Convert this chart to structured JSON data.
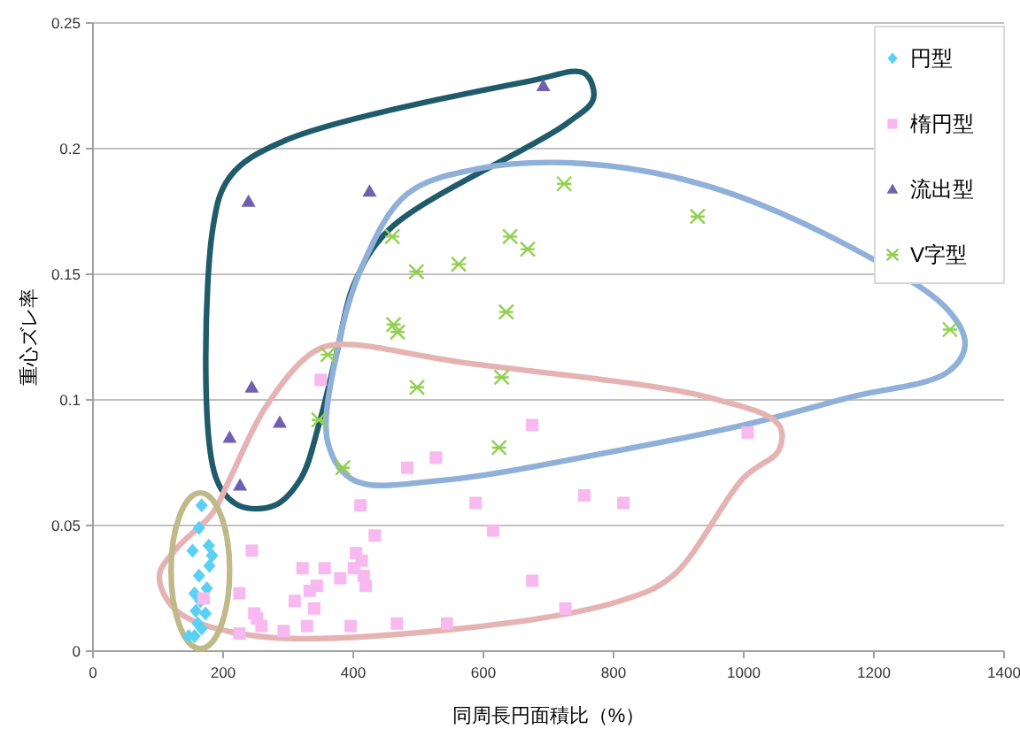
{
  "chart_data": {
    "type": "scatter",
    "xlabel": "同周長円面積比（%）",
    "ylabel": "重心ズレ率",
    "xlim": [
      0,
      1400
    ],
    "ylim": [
      0,
      0.25
    ],
    "xticks": [
      0,
      200,
      400,
      600,
      800,
      1000,
      1200,
      1400
    ],
    "yticks": [
      0,
      0.05,
      0.1,
      0.15,
      0.2,
      0.25
    ],
    "grid": "y",
    "legend": "top right",
    "series": [
      {
        "name": "円型",
        "color": "#5bd0f5",
        "marker": "diamond",
        "x": [
          167,
          163,
          153,
          178,
          183,
          179,
          163,
          175,
          156,
          165,
          158,
          173,
          161,
          167,
          147,
          156
        ],
        "values": [
          0.058,
          0.049,
          0.04,
          0.042,
          0.038,
          0.034,
          0.03,
          0.025,
          0.023,
          0.02,
          0.016,
          0.015,
          0.011,
          0.009,
          0.006,
          0.006
        ]
      },
      {
        "name": "楕円型",
        "color": "#f7b9f0",
        "marker": "square",
        "x": [
          411,
          588,
          483,
          527,
          433,
          615,
          244,
          404,
          413,
          322,
          356,
          401,
          416,
          380,
          419,
          344,
          333,
          225,
          170,
          310,
          340,
          248,
          252,
          259,
          225,
          293,
          329,
          396,
          467,
          544,
          675,
          1006,
          755,
          815,
          675,
          726,
          350
        ],
        "values": [
          0.058,
          0.059,
          0.073,
          0.077,
          0.046,
          0.048,
          0.04,
          0.039,
          0.036,
          0.033,
          0.033,
          0.033,
          0.03,
          0.029,
          0.026,
          0.026,
          0.024,
          0.023,
          0.021,
          0.02,
          0.017,
          0.015,
          0.013,
          0.01,
          0.007,
          0.008,
          0.01,
          0.01,
          0.011,
          0.011,
          0.09,
          0.087,
          0.062,
          0.059,
          0.028,
          0.017,
          0.108
        ]
      },
      {
        "name": "流出型",
        "color": "#7060b0",
        "marker": "triangle",
        "x": [
          692,
          239,
          425,
          244,
          210,
          287,
          226
        ],
        "values": [
          0.225,
          0.179,
          0.183,
          0.105,
          0.085,
          0.091,
          0.066
        ]
      },
      {
        "name": "V字型",
        "color": "#92d050",
        "marker": "cross",
        "x": [
          460,
          497,
          562,
          641,
          668,
          724,
          635,
          462,
          468,
          361,
          498,
          628,
          347,
          624,
          384,
          929,
          1317
        ],
        "values": [
          0.165,
          0.151,
          0.154,
          0.165,
          0.16,
          0.186,
          0.135,
          0.13,
          0.127,
          0.118,
          0.105,
          0.109,
          0.092,
          0.081,
          0.073,
          0.173,
          0.128
        ]
      }
    ]
  }
}
